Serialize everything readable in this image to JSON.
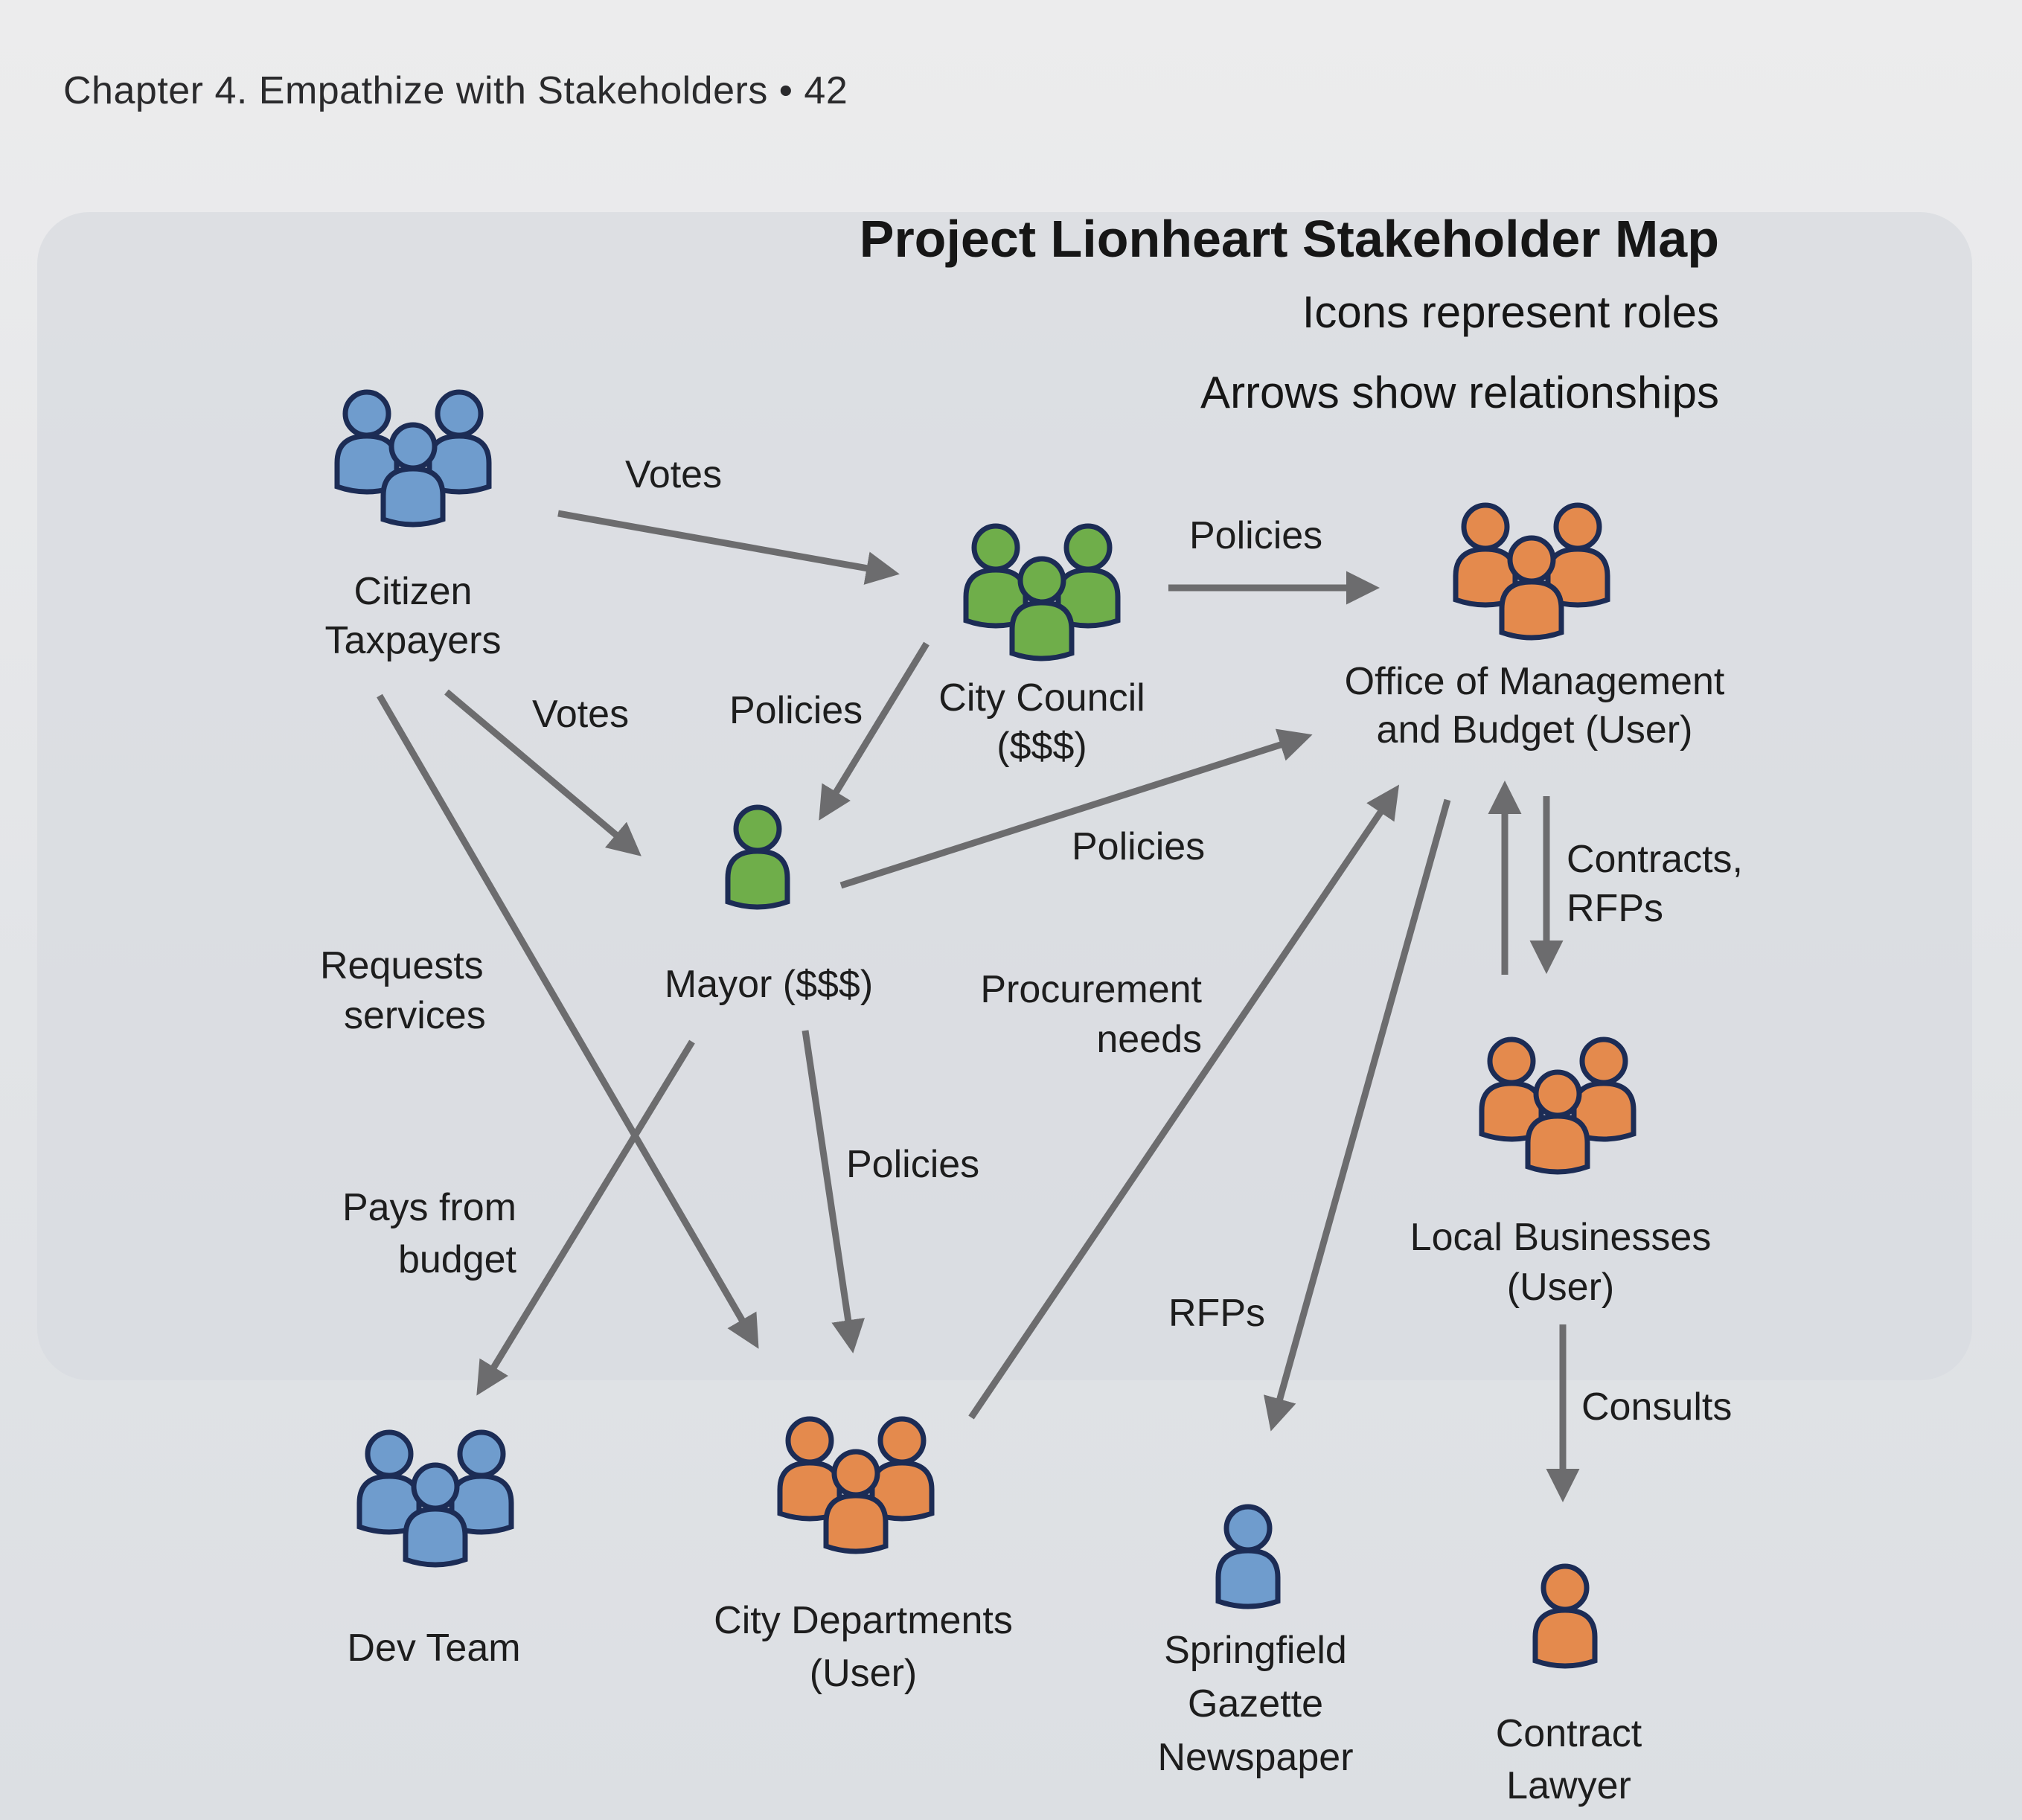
{
  "header": {
    "running_head": "Chapter 4. Empathize with Stakeholders • 42"
  },
  "diagram": {
    "title": "Project Lionheart Stakeholder Map",
    "legend": [
      "Icons represent roles",
      "Arrows show relationships"
    ],
    "colors": {
      "blue": "#6f9ccd",
      "green": "#6fae4a",
      "orange": "#e48a4d",
      "outline": "#1c2c55",
      "arrow": "#6c6c6e"
    },
    "nodes": {
      "citizen": {
        "icon": "group-people-icon",
        "color": "blue",
        "label": [
          "Citizen",
          "Taxpayers"
        ]
      },
      "council": {
        "icon": "group-people-icon",
        "color": "green",
        "label": [
          "City Council",
          "($$$)"
        ]
      },
      "omb": {
        "icon": "group-people-icon",
        "color": "orange",
        "label": [
          "Office of Management",
          "and Budget (User)"
        ]
      },
      "mayor": {
        "icon": "person-icon",
        "color": "green",
        "label": [
          "Mayor ($$$)"
        ]
      },
      "local": {
        "icon": "group-people-icon",
        "color": "orange",
        "label": [
          "Local Businesses",
          "(User)"
        ]
      },
      "devteam": {
        "icon": "group-people-icon",
        "color": "blue",
        "label": [
          "Dev Team"
        ]
      },
      "departments": {
        "icon": "group-people-icon",
        "color": "orange",
        "label": [
          "City Departments",
          "(User)"
        ]
      },
      "gazette": {
        "icon": "person-icon",
        "color": "blue",
        "label": [
          "Springfield",
          "Gazette",
          "Newspaper"
        ]
      },
      "lawyer": {
        "icon": "person-icon",
        "color": "orange",
        "label": [
          "Contract",
          "Lawyer"
        ]
      }
    },
    "edges": [
      {
        "from": "Citizen Taxpayers",
        "to": "City Council",
        "label": [
          "Votes"
        ]
      },
      {
        "from": "City Council",
        "to": "Office of Management and Budget",
        "label": [
          "Policies"
        ]
      },
      {
        "from": "Citizen Taxpayers",
        "to": "Mayor",
        "label": [
          "Votes"
        ]
      },
      {
        "from": "City Council",
        "to": "Mayor",
        "label": [
          "Policies"
        ]
      },
      {
        "from": "Mayor",
        "to": "Office of Management and Budget",
        "label": [
          "Policies"
        ]
      },
      {
        "from": "Office of Management and Budget",
        "to": "Local Businesses",
        "label": [
          "Contracts,",
          "RFPs"
        ]
      },
      {
        "from": "Local Businesses",
        "to": "Office of Management and Budget",
        "label": []
      },
      {
        "from": "Citizen Taxpayers",
        "to": "City Departments",
        "label": [
          "Requests",
          "services"
        ]
      },
      {
        "from": "City Departments",
        "to": "Office of Management and Budget",
        "label": [
          "Procurement",
          "needs"
        ]
      },
      {
        "from": "Mayor",
        "to": "City Departments",
        "label": [
          "Policies"
        ]
      },
      {
        "from": "Mayor",
        "to": "Dev Team",
        "label": [
          "Pays from",
          "budget"
        ]
      },
      {
        "from": "Office of Management and Budget",
        "to": "Springfield Gazette Newspaper",
        "label": [
          "RFPs"
        ]
      },
      {
        "from": "Local Businesses",
        "to": "Contract Lawyer",
        "label": [
          "Consults"
        ]
      }
    ]
  }
}
